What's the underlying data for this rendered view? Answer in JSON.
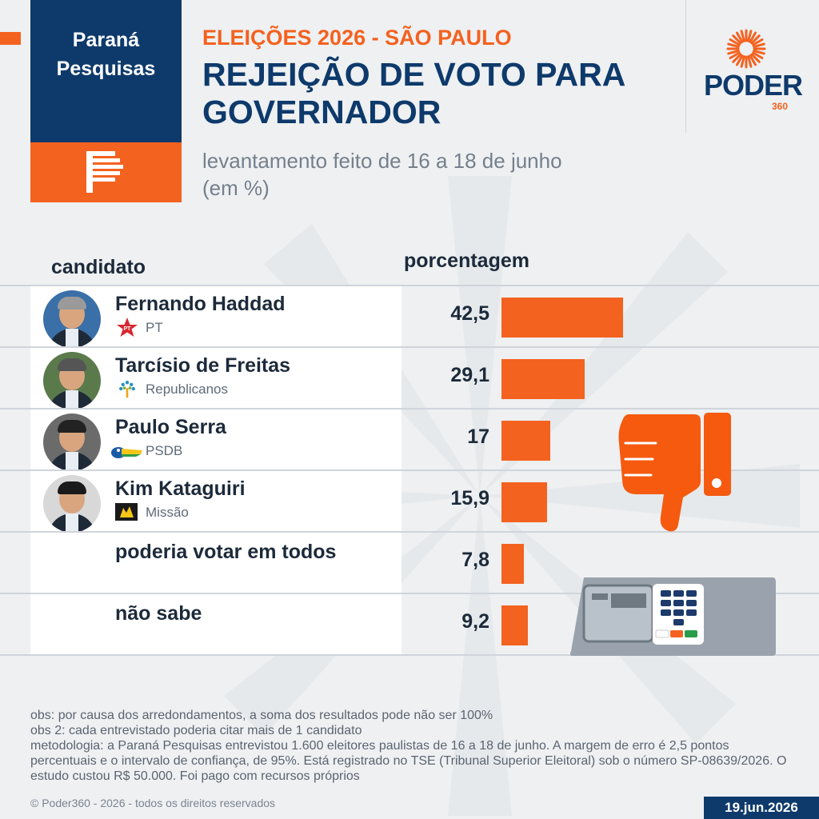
{
  "brand": {
    "line1": "Paraná",
    "line2": "Pesquisas",
    "logo_icon": "parana-pesquisas-p-icon"
  },
  "header": {
    "kicker": "ELEIÇÕES 2026 - SÃO PAULO",
    "title_line1": "REJEIÇÃO DE VOTO PARA",
    "title_line2": "GOVERNADOR",
    "subtitle_line1": "levantamento feito de 16 a 18 de junho",
    "subtitle_line2": "(em %)"
  },
  "publisher": {
    "wordmark": "PODER",
    "number": "360",
    "icon": "sunburst-icon"
  },
  "columns": {
    "candidate": "candidato",
    "percentage": "porcentagem"
  },
  "colors": {
    "accent": "#f4621f",
    "navy": "#0e3a6b",
    "background": "#eef0f2"
  },
  "rows": [
    {
      "name": "Fernando Haddad",
      "party": "PT",
      "value": "42,5"
    },
    {
      "name": "Tarcísio de Freitas",
      "party": "Republicanos",
      "value": "29,1"
    },
    {
      "name": "Paulo Serra",
      "party": "PSDB",
      "value": "17"
    },
    {
      "name": "Kim Kataguiri",
      "party": "Missão",
      "value": "15,9"
    },
    {
      "name": "poderia votar em todos",
      "party": "",
      "value": "7,8"
    },
    {
      "name": "não sabe",
      "party": "",
      "value": "9,2"
    }
  ],
  "chart_data": {
    "type": "bar",
    "title": "REJEIÇÃO DE VOTO PARA GOVERNADOR",
    "subtitle": "levantamento feito de 16 a 18 de junho (em %)",
    "xlabel": "candidato",
    "ylabel": "porcentagem",
    "categories": [
      "Fernando Haddad",
      "Tarcísio de Freitas",
      "Paulo Serra",
      "Kim Kataguiri",
      "poderia votar em todos",
      "não sabe"
    ],
    "values": [
      42.5,
      29.1,
      17,
      15.9,
      7.8,
      9.2
    ],
    "ylim": [
      0,
      42.5
    ],
    "orientation": "horizontal",
    "grid": false,
    "legend": "none"
  },
  "illustrations": {
    "thumb": "thumbs-down-icon",
    "urn": "voting-machine-icon"
  },
  "notes": {
    "obs1": "obs: por causa dos arredondamentos, a soma dos resultados pode não ser 100%",
    "obs2": "obs 2: cada entrevistado poderia citar mais de 1 candidato",
    "method": "metodologia: a Paraná Pesquisas entrevistou 1.600 eleitores paulistas de 16 a 18 de junho. A margem de erro é 2,5 pontos percentuais e o intervalo de confiança, de 95%. Está registrado no TSE (Tribunal Superior Eleitoral) sob o número SP-08639/2026. O estudo custou R$ 50.000. Foi pago com recursos próprios"
  },
  "footer": {
    "copyright": "© Poder360 - 2026 - todos os direitos reservados",
    "date": "19.jun.2026"
  }
}
